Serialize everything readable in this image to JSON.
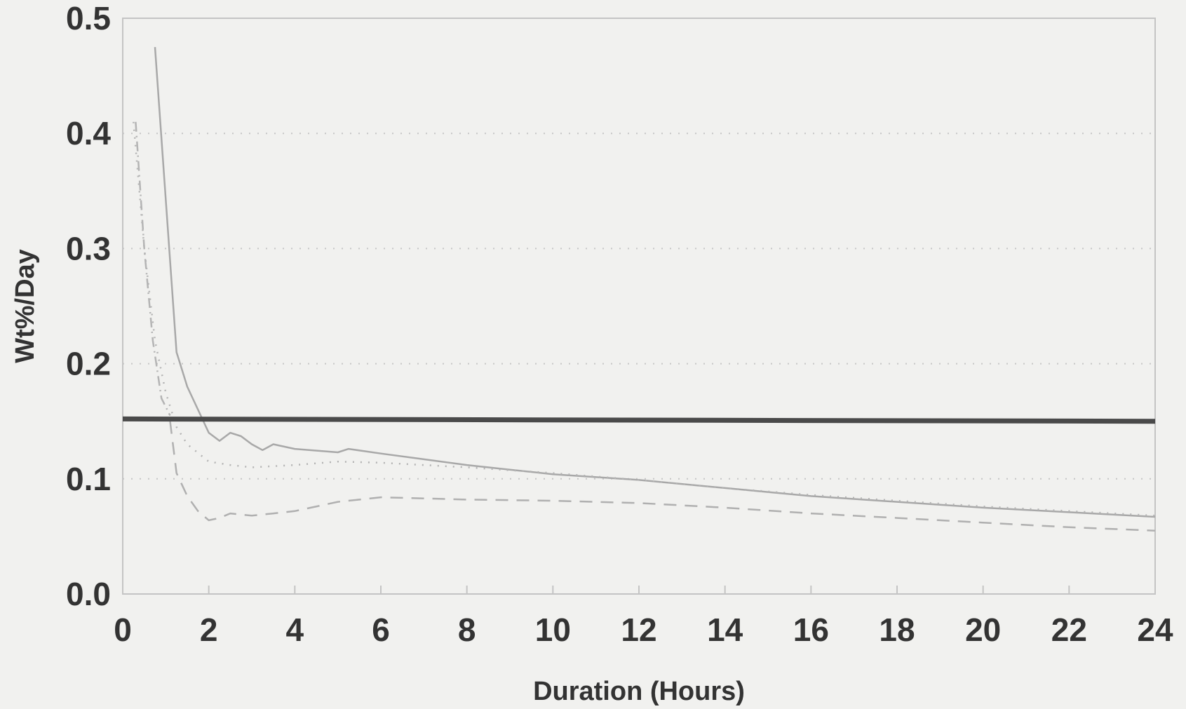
{
  "chart_data": {
    "type": "line",
    "title": "",
    "xlabel": "Duration (Hours)",
    "ylabel": "Wt%/Day",
    "xlim": [
      0,
      24
    ],
    "ylim": [
      0,
      0.5
    ],
    "x_ticks": [
      "0",
      "2",
      "4",
      "6",
      "8",
      "10",
      "12",
      "14",
      "16",
      "18",
      "20",
      "22",
      "24"
    ],
    "y_ticks": [
      "0.0",
      "0.1",
      "0.2",
      "0.3",
      "0.4",
      "0.5"
    ],
    "grid": "y-dotted",
    "legend": "none",
    "series": [
      {
        "style": "solid",
        "color": "#a8a8a8",
        "x": [
          0.75,
          1.25,
          1.5,
          2.0,
          2.25,
          2.5,
          2.75,
          3.0,
          3.25,
          3.5,
          4.0,
          5.0,
          5.25,
          6.0,
          7.0,
          8.0,
          9.0,
          10.0,
          12.0,
          14.0,
          16.0,
          18.0,
          20.0,
          22.0,
          24.0
        ],
        "y": [
          0.475,
          0.21,
          0.18,
          0.14,
          0.133,
          0.14,
          0.137,
          0.13,
          0.125,
          0.13,
          0.126,
          0.123,
          0.126,
          0.122,
          0.117,
          0.112,
          0.108,
          0.104,
          0.099,
          0.092,
          0.085,
          0.08,
          0.075,
          0.071,
          0.067
        ]
      },
      {
        "style": "dotted",
        "color": "#b4b4b4",
        "x": [
          0.25,
          0.5,
          0.75,
          1.0,
          1.25,
          1.5,
          2.0,
          2.5,
          3.0,
          4.0,
          5.0,
          6.0,
          8.0,
          10.0,
          12.0,
          14.0,
          16.0,
          18.0,
          20.0,
          22.0,
          24.0
        ],
        "y": [
          0.41,
          0.3,
          0.22,
          0.175,
          0.145,
          0.13,
          0.115,
          0.112,
          0.11,
          0.112,
          0.115,
          0.114,
          0.11,
          0.105,
          0.099,
          0.092,
          0.086,
          0.081,
          0.076,
          0.072,
          0.068
        ]
      },
      {
        "style": "dash-dot",
        "color": "#b4b4b4",
        "x": [
          0.3,
          0.5,
          0.7,
          0.9,
          1.1
        ],
        "y": [
          0.41,
          0.3,
          0.22,
          0.17,
          0.155
        ]
      },
      {
        "style": "dashed",
        "color": "#b0b0b0",
        "x": [
          1.1,
          1.25,
          1.5,
          1.75,
          2.0,
          2.25,
          2.5,
          3.0,
          3.5,
          4.0,
          5.0,
          6.0,
          7.0,
          8.0,
          10.0,
          12.0,
          14.0,
          16.0,
          18.0,
          20.0,
          22.0,
          24.0
        ],
        "y": [
          0.15,
          0.105,
          0.085,
          0.072,
          0.064,
          0.066,
          0.07,
          0.068,
          0.07,
          0.072,
          0.08,
          0.084,
          0.083,
          0.082,
          0.081,
          0.079,
          0.075,
          0.07,
          0.066,
          0.062,
          0.058,
          0.055
        ]
      },
      {
        "style": "thick-solid",
        "color": "#4a4a4a",
        "x": [
          0,
          24
        ],
        "y": [
          0.152,
          0.15
        ]
      }
    ]
  }
}
